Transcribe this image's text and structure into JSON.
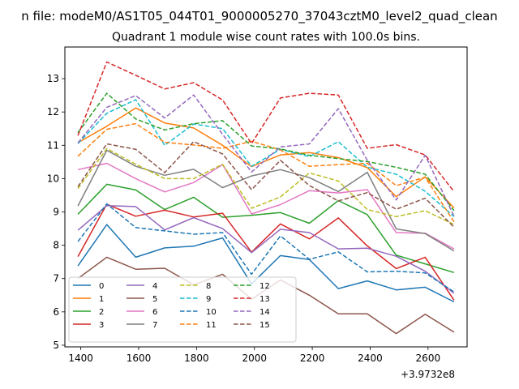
{
  "figure": {
    "suptitle": "n file: modeM0/AS1T05_044T01_9000005270_37043cztM0_level2_quad_clean",
    "offset_text": "+3.9732e8"
  },
  "chart_data": {
    "type": "line",
    "title": "Quadrant 1 module wise count rates with 100.0s bins.",
    "xlabel": "",
    "ylabel": "",
    "xlim": [
      1345,
      2735
    ],
    "ylim": [
      4.95,
      13.95
    ],
    "x_ticks": [
      1400,
      1600,
      1800,
      2000,
      2200,
      2400,
      2600
    ],
    "y_ticks": [
      5,
      6,
      7,
      8,
      9,
      10,
      11,
      12,
      13
    ],
    "grid": false,
    "legend_position": "lower-left",
    "legend_columns": 4,
    "x": [
      1390,
      1490,
      1590,
      1690,
      1790,
      1890,
      1990,
      2090,
      2190,
      2290,
      2390,
      2490,
      2590,
      2690
    ],
    "series": [
      {
        "name": "0",
        "color": "#1f77b4",
        "dash": "solid",
        "values": [
          7.38,
          8.62,
          7.64,
          7.92,
          7.97,
          8.22,
          6.84,
          7.69,
          7.57,
          6.7,
          6.93,
          6.66,
          6.74,
          6.3
        ]
      },
      {
        "name": "1",
        "color": "#ff7f0e",
        "dash": "solid",
        "values": [
          11.08,
          11.57,
          12.12,
          11.67,
          11.52,
          11.0,
          10.36,
          10.71,
          10.78,
          10.63,
          10.33,
          9.46,
          10.05,
          9.12
        ]
      },
      {
        "name": "2",
        "color": "#2ca02c",
        "dash": "solid",
        "values": [
          8.93,
          9.83,
          9.66,
          9.07,
          9.44,
          8.84,
          8.9,
          8.98,
          8.66,
          9.34,
          8.92,
          7.7,
          7.44,
          7.18
        ]
      },
      {
        "name": "3",
        "color": "#d62728",
        "dash": "solid",
        "values": [
          7.66,
          9.23,
          8.87,
          9.05,
          8.85,
          8.96,
          7.79,
          8.64,
          8.19,
          8.82,
          7.98,
          7.3,
          7.64,
          6.35
        ]
      },
      {
        "name": "4",
        "color": "#9467bd",
        "dash": "solid",
        "values": [
          8.45,
          9.19,
          9.16,
          8.46,
          8.83,
          8.5,
          7.78,
          8.48,
          8.38,
          7.89,
          7.91,
          7.67,
          7.22,
          6.56
        ]
      },
      {
        "name": "5",
        "color": "#8c564b",
        "dash": "solid",
        "values": [
          7.0,
          7.64,
          7.28,
          7.31,
          6.81,
          7.13,
          6.38,
          6.96,
          6.5,
          5.94,
          5.94,
          5.35,
          5.93,
          5.39
        ]
      },
      {
        "name": "6",
        "color": "#e377c2",
        "dash": "solid",
        "values": [
          10.27,
          10.46,
          10.0,
          9.6,
          9.88,
          10.42,
          8.94,
          9.22,
          9.64,
          9.57,
          9.67,
          8.38,
          8.36,
          7.89
        ]
      },
      {
        "name": "7",
        "color": "#7f7f7f",
        "dash": "solid",
        "values": [
          9.18,
          10.85,
          10.37,
          10.1,
          10.28,
          9.73,
          10.08,
          10.27,
          10.03,
          9.61,
          10.19,
          8.49,
          8.35,
          7.83
        ]
      },
      {
        "name": "8",
        "color": "#bcbd22",
        "dash": "dashed",
        "values": [
          9.7,
          10.9,
          10.43,
          10.0,
          10.0,
          10.43,
          9.11,
          9.45,
          10.17,
          9.93,
          9.07,
          8.86,
          9.04,
          8.62
        ]
      },
      {
        "name": "9",
        "color": "#17becf",
        "dash": "dashed",
        "values": [
          11.05,
          11.96,
          12.37,
          11.0,
          11.64,
          11.5,
          10.37,
          10.88,
          10.66,
          11.11,
          10.34,
          10.13,
          9.62,
          8.86
        ]
      },
      {
        "name": "10",
        "color": "#1f77b4",
        "dash": "dashed",
        "values": [
          8.11,
          9.24,
          8.53,
          8.43,
          8.33,
          8.38,
          7.13,
          8.28,
          7.58,
          7.8,
          7.2,
          7.22,
          7.17,
          6.6
        ]
      },
      {
        "name": "11",
        "color": "#ff7f0e",
        "dash": "dashed",
        "values": [
          10.67,
          11.48,
          11.65,
          11.09,
          11.01,
          10.91,
          11.12,
          10.86,
          10.37,
          10.42,
          10.46,
          9.79,
          10.04,
          8.7
        ]
      },
      {
        "name": "12",
        "color": "#2ca02c",
        "dash": "dashed",
        "values": [
          11.38,
          12.56,
          11.79,
          11.46,
          11.65,
          11.74,
          10.98,
          10.89,
          10.7,
          10.6,
          10.51,
          10.34,
          10.13,
          9.04
        ]
      },
      {
        "name": "13",
        "color": "#d62728",
        "dash": "dashed",
        "values": [
          11.29,
          13.5,
          13.1,
          12.69,
          12.88,
          12.36,
          11.05,
          12.42,
          12.56,
          12.51,
          10.91,
          11.02,
          10.71,
          9.61
        ]
      },
      {
        "name": "14",
        "color": "#9467bd",
        "dash": "dashed",
        "values": [
          11.07,
          12.14,
          12.49,
          11.82,
          12.51,
          11.33,
          10.2,
          10.95,
          11.04,
          12.1,
          10.55,
          9.36,
          10.7,
          8.87
        ]
      },
      {
        "name": "15",
        "color": "#8c564b",
        "dash": "dashed",
        "values": [
          9.76,
          11.04,
          10.88,
          10.18,
          11.11,
          10.74,
          9.67,
          10.55,
          9.79,
          9.33,
          9.58,
          9.08,
          9.41,
          8.54
        ]
      }
    ]
  }
}
